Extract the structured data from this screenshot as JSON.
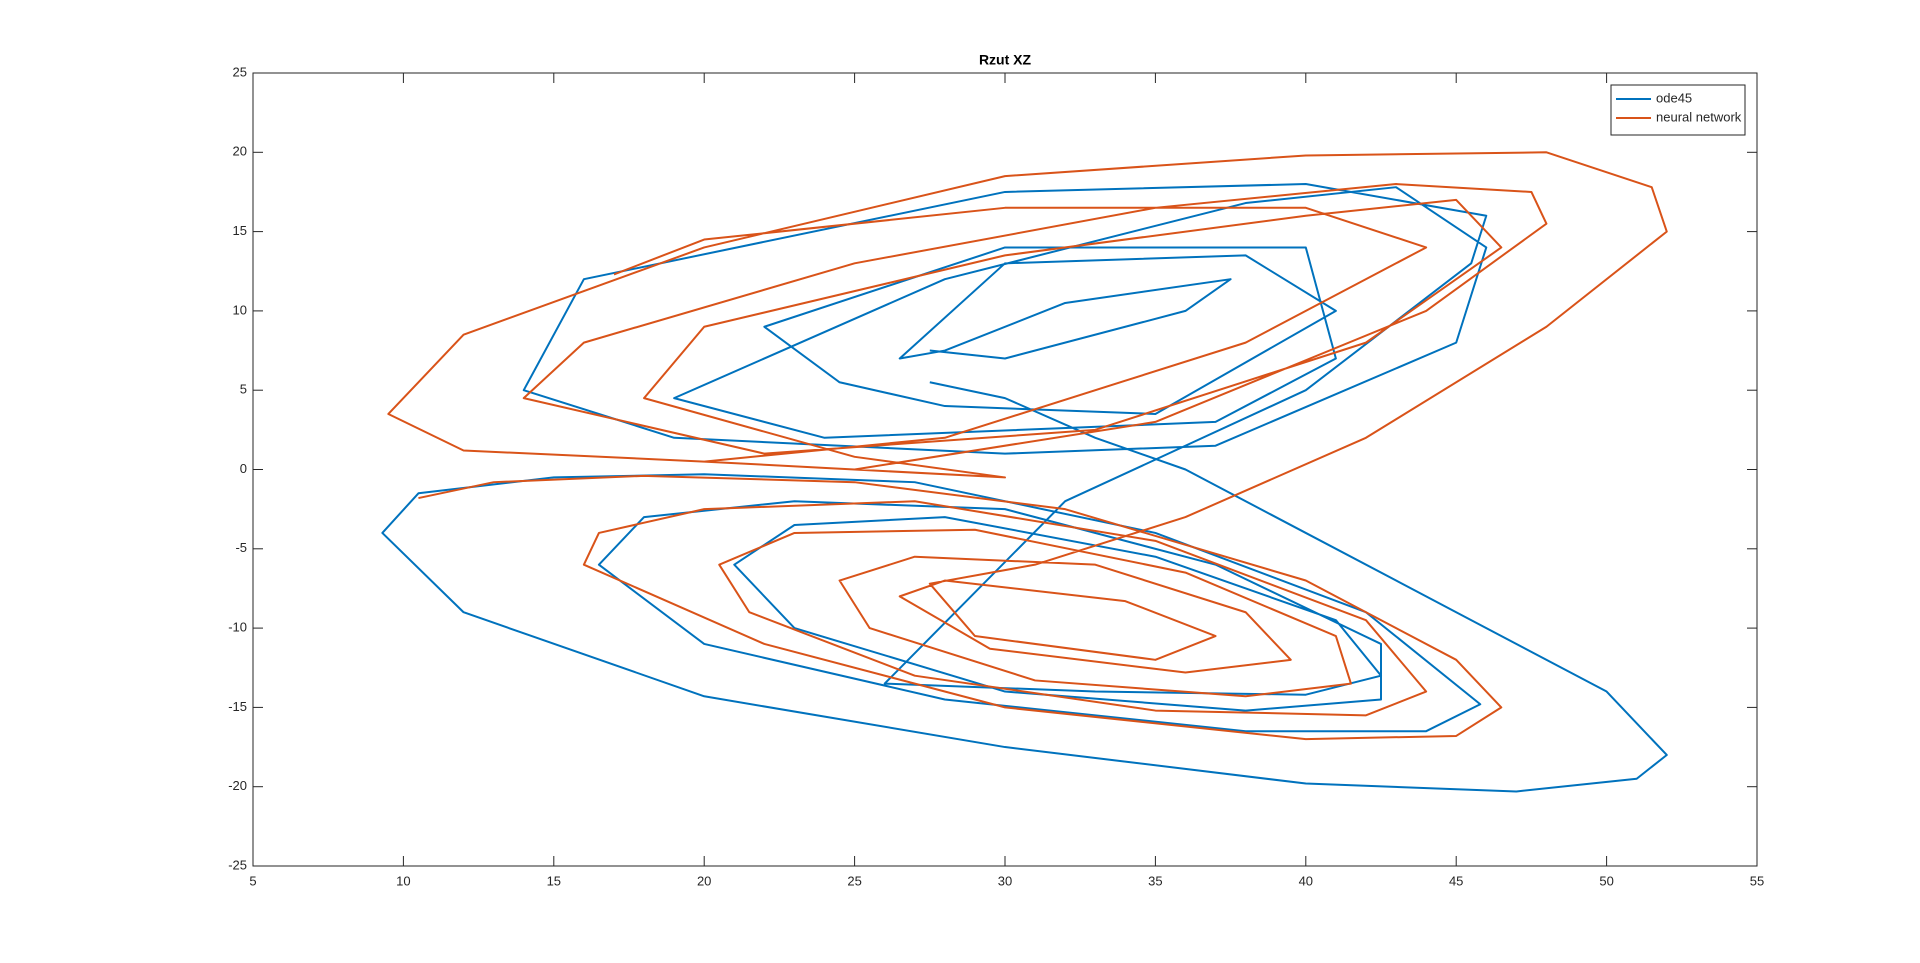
{
  "chart_data": {
    "type": "line",
    "title": "Rzut XZ",
    "xlim": [
      5,
      55
    ],
    "xticks": [
      5,
      10,
      15,
      20,
      25,
      30,
      35,
      40,
      45,
      50,
      55
    ],
    "ylim": [
      -25,
      25
    ],
    "yticks": [
      -25,
      -20,
      -15,
      -10,
      -5,
      0,
      5,
      10,
      15,
      20,
      25
    ],
    "grid": false,
    "legend": "northeast",
    "series": [
      {
        "name": "ode45",
        "color": "#0072bd",
        "x": [
          27.5,
          30,
          33,
          36,
          40,
          45,
          50,
          52,
          51,
          47,
          40,
          30,
          20,
          12,
          9.3,
          10.5,
          15,
          20,
          27,
          35,
          42,
          45.8,
          44,
          38,
          28,
          20,
          16.5,
          18,
          23,
          30,
          37,
          42.5,
          42.5,
          38,
          30,
          23,
          21,
          23,
          28,
          35,
          41,
          42.5,
          40,
          33,
          26,
          32,
          40,
          45.5,
          46,
          40,
          30,
          16,
          14,
          19,
          30,
          37,
          45,
          46,
          43,
          38,
          28,
          19,
          24,
          37,
          41,
          40,
          30,
          22,
          24.5,
          28,
          35,
          41,
          38,
          30,
          26.5,
          28,
          32,
          37.5,
          36,
          30,
          27.5
        ],
        "values": [
          5.5,
          4.5,
          2,
          0,
          -4,
          -9,
          -14,
          -18,
          -19.5,
          -20.3,
          -19.8,
          -17.5,
          -14.3,
          -9,
          -4,
          -1.5,
          -0.5,
          -0.3,
          -0.8,
          -4,
          -9,
          -14.8,
          -16.5,
          -16.5,
          -14.5,
          -11,
          -6,
          -3,
          -2,
          -2.5,
          -6,
          -11,
          -14.5,
          -15.2,
          -14,
          -10,
          -6,
          -3.5,
          -3,
          -5.5,
          -9.5,
          -13,
          -14.2,
          -14,
          -13.5,
          -2,
          5,
          13,
          16,
          18,
          17.5,
          12,
          5,
          2,
          1,
          1.5,
          8,
          14,
          17.8,
          16.8,
          12,
          4.5,
          2,
          3,
          7,
          14,
          14,
          9,
          5.5,
          4,
          3.5,
          10,
          13.5,
          13,
          7,
          7.5,
          10.5,
          12,
          10,
          7,
          7.5
        ]
      },
      {
        "name": "neural network",
        "color": "#d95319",
        "x": [
          10.5,
          13,
          18,
          25,
          32,
          40,
          45,
          46.5,
          45,
          40,
          30,
          22,
          16,
          16.5,
          20,
          27,
          35,
          42,
          44,
          42,
          35,
          27,
          21.5,
          20.5,
          23,
          29,
          36,
          41,
          41.5,
          38,
          31,
          25.5,
          24.5,
          27,
          33,
          38,
          39.5,
          36,
          29.5,
          26.5,
          28,
          34,
          37,
          35,
          29,
          27.5,
          31,
          36,
          42,
          48,
          52,
          51.5,
          48,
          40,
          30,
          20,
          12,
          9.5,
          12,
          20,
          30,
          25,
          18,
          20,
          30,
          40,
          45,
          46.5,
          42,
          33,
          22,
          14,
          16,
          25,
          35,
          43,
          47.5,
          48,
          44,
          35,
          25,
          20,
          28,
          38,
          44,
          40,
          30,
          20,
          17
        ],
        "values": [
          -1.8,
          -0.8,
          -0.4,
          -0.8,
          -2.5,
          -7,
          -12,
          -15,
          -16.8,
          -17,
          -15,
          -11,
          -6,
          -4,
          -2.5,
          -2,
          -4.5,
          -9.5,
          -14,
          -15.5,
          -15.2,
          -13,
          -9,
          -6,
          -4,
          -3.8,
          -6.5,
          -10.5,
          -13.5,
          -14.3,
          -13.3,
          -10,
          -7,
          -5.5,
          -6,
          -9,
          -12,
          -12.8,
          -11.3,
          -8,
          -7,
          -8.3,
          -10.5,
          -12,
          -10.5,
          -7.2,
          -6,
          -3,
          2,
          9,
          15,
          17.8,
          20,
          19.8,
          18.5,
          14,
          8.5,
          3.5,
          1.2,
          0.5,
          -0.5,
          0.8,
          4.5,
          9,
          13.5,
          16,
          17,
          14,
          8,
          2.5,
          1,
          4.5,
          8,
          13,
          16.5,
          18,
          17.5,
          15.5,
          10,
          3,
          0,
          0.5,
          2,
          8,
          14,
          16.5,
          16.5,
          14.5,
          12.3
        ]
      }
    ]
  }
}
